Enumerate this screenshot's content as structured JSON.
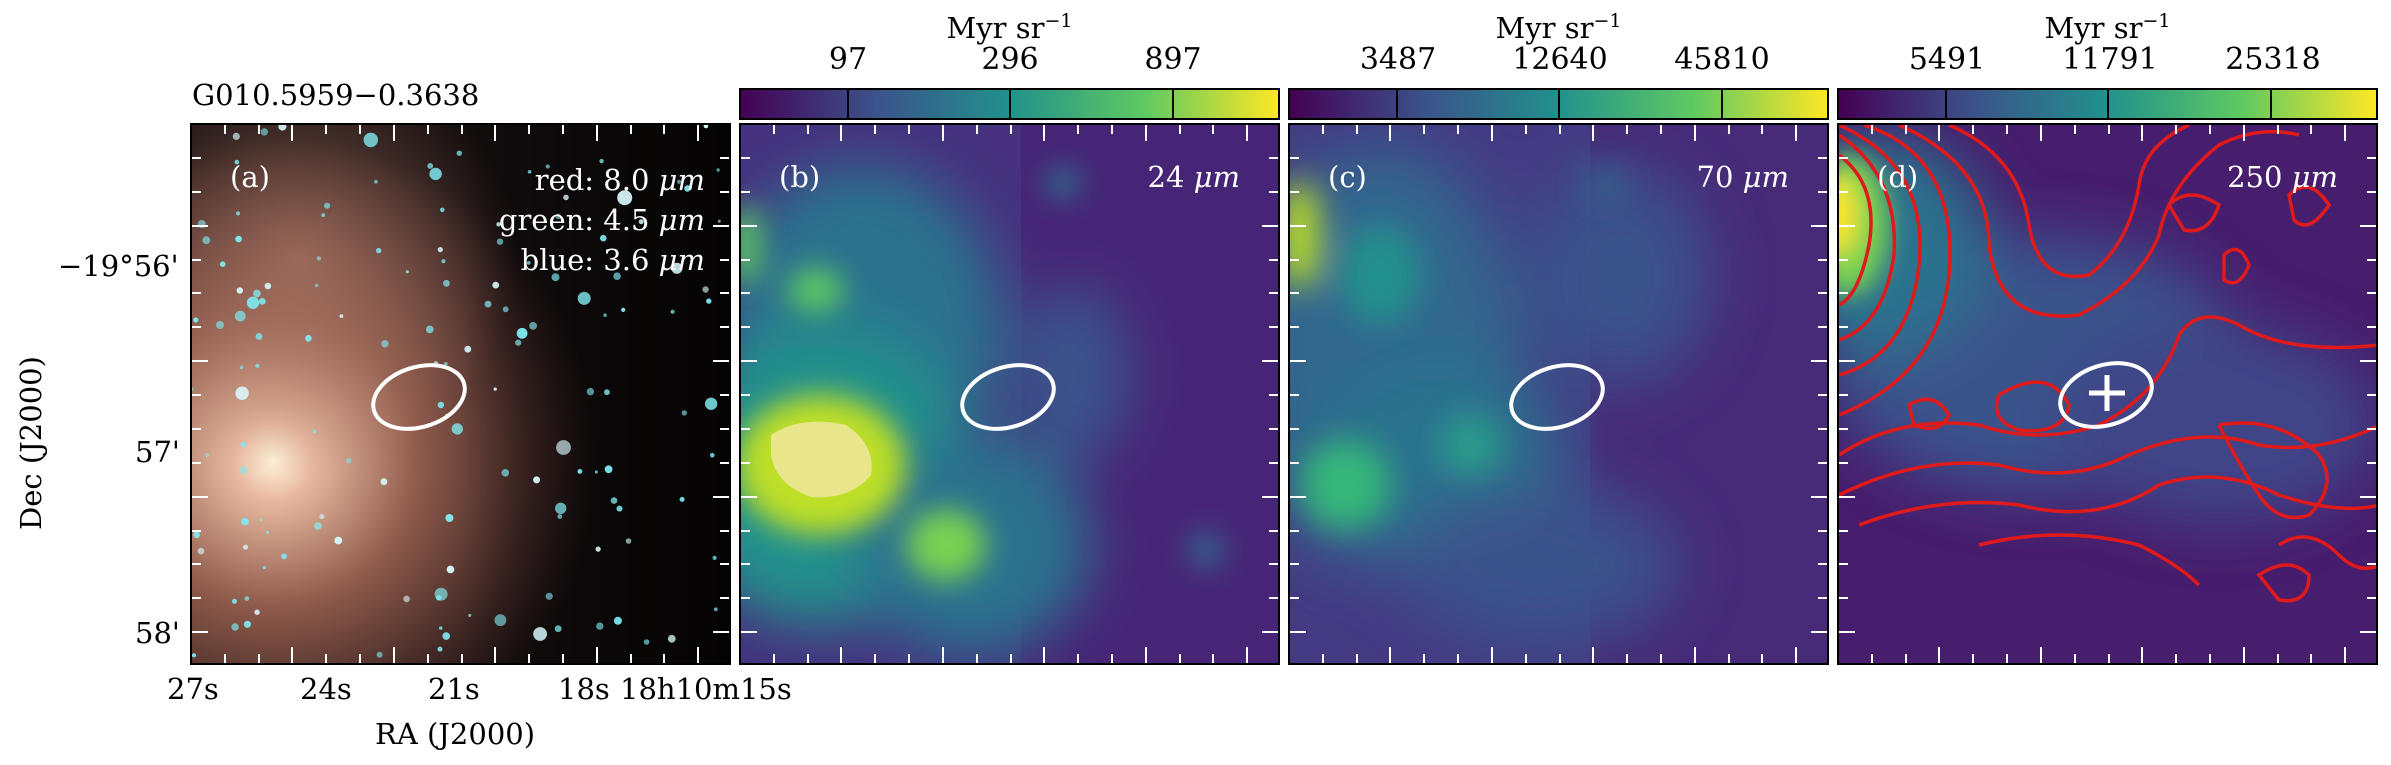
{
  "figure": {
    "source_name": "G010.5959−0.3638",
    "x_axis_label": "RA (J2000)",
    "y_axis_label": "Dec (J2000)",
    "ra_ticks": [
      "27s",
      "24s",
      "21s",
      "18s",
      "18h10m15s"
    ],
    "dec_ticks": [
      "−19°56'",
      "57'",
      "58'"
    ]
  },
  "panels": [
    {
      "label": "(a)",
      "bands": [
        "red: 8.0",
        "green: 4.5",
        "blue: 3.6"
      ],
      "band_unit": "μm",
      "colormap": "RGB composite"
    },
    {
      "label": "(b)",
      "wavelength": "24",
      "unit": "μm",
      "colorbar": {
        "unit": "Myr sr",
        "exp": "−1",
        "ticks": [
          "97",
          "296",
          "897"
        ],
        "cmap": "viridis"
      }
    },
    {
      "label": "(c)",
      "wavelength": "70",
      "unit": "μm",
      "colorbar": {
        "unit": "Myr sr",
        "exp": "−1",
        "ticks": [
          "3487",
          "12640",
          "45810"
        ],
        "cmap": "viridis"
      }
    },
    {
      "label": "(d)",
      "wavelength": "250",
      "unit": "μm",
      "colorbar": {
        "unit": "Myr sr",
        "exp": "−1",
        "ticks": [
          "5491",
          "11791",
          "25318"
        ],
        "cmap": "viridis"
      },
      "overlay": "contours",
      "contour_color": "#e01a1a",
      "marker": "plus"
    }
  ],
  "colors": {
    "ellipse": "#ffffff",
    "viridis_low": "#440154",
    "viridis_mid": "#21918c",
    "viridis_high": "#fde725"
  }
}
